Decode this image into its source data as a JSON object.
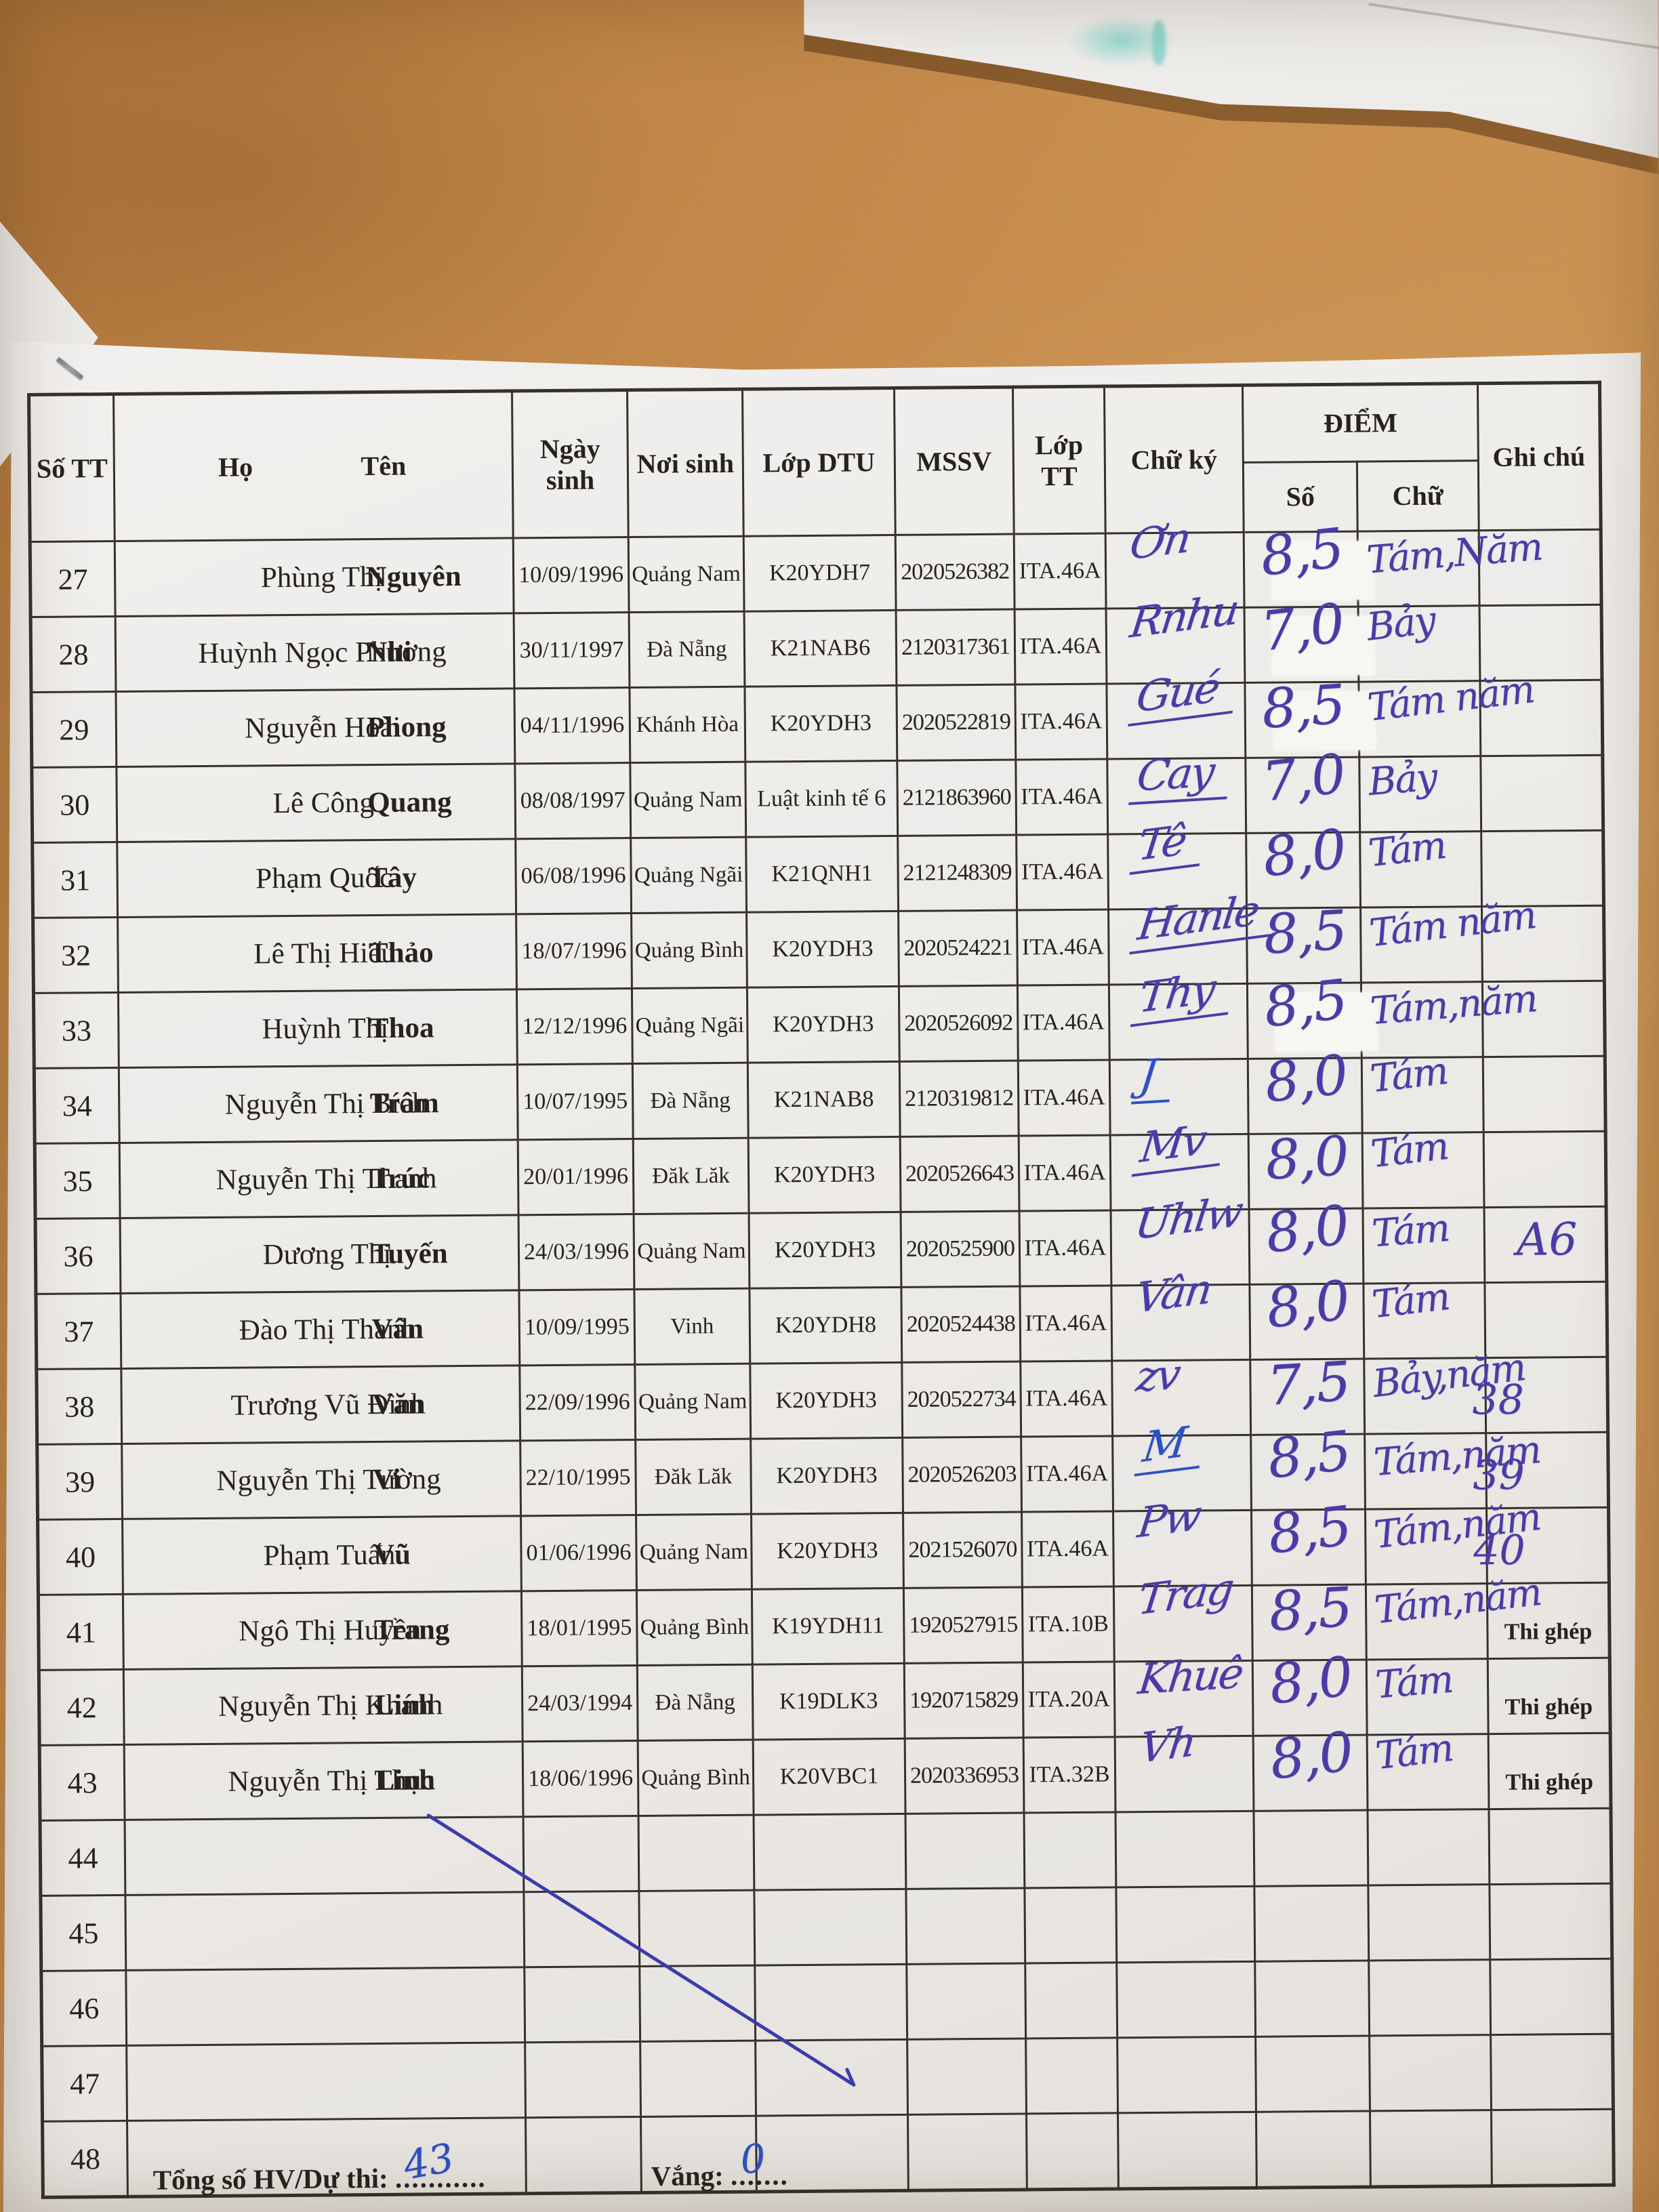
{
  "document": {
    "header": {
      "col_stt": "Số TT",
      "col_ho": "Họ",
      "col_ten": "Tên",
      "col_ngay_sinh": "Ngày sinh",
      "col_noi_sinh": "Nơi sinh",
      "col_lop_dtu": "Lớp DTU",
      "col_mssv": "MSSV",
      "col_lop_tt": "Lớp TT",
      "col_chu_ky": "Chữ ký",
      "col_diem": "ĐIỂM",
      "col_diem_so": "Số",
      "col_diem_chu": "Chữ",
      "col_ghi_chu": "Ghi chú"
    },
    "rows": [
      {
        "stt": "27",
        "ho": "Phùng Thị",
        "ten": "Nguyên",
        "ngay_sinh": "10/09/1996",
        "noi_sinh": "Quảng Nam",
        "lop_dtu": "K20YDH7",
        "mssv": "2020526382",
        "lop_tt": "ITA.46A",
        "chu_ky": "Ơn",
        "sig_ink": "purple",
        "sig_underline": false,
        "diem_so": "8,5",
        "diem_chu": "Tám,Năm",
        "margin_note": "",
        "ghi_chu": "",
        "ghi_chu_hw": "",
        "patch": true
      },
      {
        "stt": "28",
        "ho": "Huỳnh Ngọc Phương",
        "ten": "Nhi",
        "ngay_sinh": "30/11/1997",
        "noi_sinh": "Đà Nẵng",
        "lop_dtu": "K21NAB6",
        "mssv": "2120317361",
        "lop_tt": "ITA.46A",
        "chu_ky": "Rnhu",
        "sig_ink": "purple",
        "sig_underline": false,
        "diem_so": "7,0",
        "diem_chu": "Bảy",
        "margin_note": "",
        "ghi_chu": "",
        "ghi_chu_hw": "",
        "patch": true
      },
      {
        "stt": "29",
        "ho": "Nguyễn Hoài",
        "ten": "Phong",
        "ngay_sinh": "04/11/1996",
        "noi_sinh": "Khánh Hòa",
        "lop_dtu": "K20YDH3",
        "mssv": "2020522819",
        "lop_tt": "ITA.46A",
        "chu_ky": "Gué",
        "sig_ink": "purple",
        "sig_underline": true,
        "diem_so": "8,5",
        "diem_chu": "Tám năm",
        "margin_note": "",
        "ghi_chu": "",
        "ghi_chu_hw": "",
        "patch": true
      },
      {
        "stt": "30",
        "ho": "Lê Công",
        "ten": "Quang",
        "ngay_sinh": "08/08/1997",
        "noi_sinh": "Quảng Nam",
        "lop_dtu": "Luật kinh tế 6",
        "mssv": "2121863960",
        "lop_tt": "ITA.46A",
        "chu_ky": "Cay",
        "sig_ink": "purple",
        "sig_underline": true,
        "diem_so": "7,0",
        "diem_chu": "Bảy",
        "margin_note": "",
        "ghi_chu": "",
        "ghi_chu_hw": "",
        "patch": false
      },
      {
        "stt": "31",
        "ho": "Phạm Quốc",
        "ten": "Tây",
        "ngay_sinh": "06/08/1996",
        "noi_sinh": "Quảng Ngãi",
        "lop_dtu": "K21QNH1",
        "mssv": "2121248309",
        "lop_tt": "ITA.46A",
        "chu_ky": "Tê",
        "sig_ink": "purple",
        "sig_underline": true,
        "diem_so": "8,0",
        "diem_chu": "Tám",
        "margin_note": "",
        "ghi_chu": "",
        "ghi_chu_hw": "",
        "patch": false
      },
      {
        "stt": "32",
        "ho": "Lê Thị Hiếu",
        "ten": "Thảo",
        "ngay_sinh": "18/07/1996",
        "noi_sinh": "Quảng Bình",
        "lop_dtu": "K20YDH3",
        "mssv": "2020524221",
        "lop_tt": "ITA.46A",
        "chu_ky": "Hanle",
        "sig_ink": "purple",
        "sig_underline": true,
        "diem_so": "8,5",
        "diem_chu": "Tám năm",
        "margin_note": "",
        "ghi_chu": "",
        "ghi_chu_hw": "",
        "patch": false
      },
      {
        "stt": "33",
        "ho": "Huỳnh Thị",
        "ten": "Thoa",
        "ngay_sinh": "12/12/1996",
        "noi_sinh": "Quảng Ngãi",
        "lop_dtu": "K20YDH3",
        "mssv": "2020526092",
        "lop_tt": "ITA.46A",
        "chu_ky": "Thy",
        "sig_ink": "purple",
        "sig_underline": true,
        "diem_so": "8,5",
        "diem_chu": "Tám,năm",
        "margin_note": "",
        "ghi_chu": "",
        "ghi_chu_hw": "",
        "patch": true
      },
      {
        "stt": "34",
        "ho": "Nguyễn Thị Bích",
        "ten": "Trâm",
        "ngay_sinh": "10/07/1995",
        "noi_sinh": "Đà Nẵng",
        "lop_dtu": "K21NAB8",
        "mssv": "2120319812",
        "lop_tt": "ITA.46A",
        "chu_ky": "J",
        "sig_ink": "blue",
        "sig_underline": true,
        "diem_so": "8,0",
        "diem_chu": "Tám",
        "margin_note": "",
        "ghi_chu": "",
        "ghi_chu_hw": "",
        "patch": false
      },
      {
        "stt": "35",
        "ho": "Nguyễn Thị Thanh",
        "ten": "Trúc",
        "ngay_sinh": "20/01/1996",
        "noi_sinh": "Đăk Lăk",
        "lop_dtu": "K20YDH3",
        "mssv": "2020526643",
        "lop_tt": "ITA.46A",
        "chu_ky": "Mv",
        "sig_ink": "purple",
        "sig_underline": true,
        "diem_so": "8,0",
        "diem_chu": "Tám",
        "margin_note": "",
        "ghi_chu": "",
        "ghi_chu_hw": "",
        "patch": false
      },
      {
        "stt": "36",
        "ho": "Dương Thị",
        "ten": "Tuyến",
        "ngay_sinh": "24/03/1996",
        "noi_sinh": "Quảng Nam",
        "lop_dtu": "K20YDH3",
        "mssv": "2020525900",
        "lop_tt": "ITA.46A",
        "chu_ky": "Uhlw",
        "sig_ink": "purple",
        "sig_underline": false,
        "diem_so": "8,0",
        "diem_chu": "Tám",
        "margin_note": "",
        "ghi_chu": "",
        "ghi_chu_hw": "A6",
        "patch": false
      },
      {
        "stt": "37",
        "ho": "Đào Thị Thanh",
        "ten": "Vân",
        "ngay_sinh": "10/09/1995",
        "noi_sinh": "Vinh",
        "lop_dtu": "K20YDH8",
        "mssv": "2020524438",
        "lop_tt": "ITA.46A",
        "chu_ky": "Vân",
        "sig_ink": "purple",
        "sig_underline": false,
        "diem_so": "8,0",
        "diem_chu": "Tám",
        "margin_note": "",
        "ghi_chu": "",
        "ghi_chu_hw": "",
        "patch": false
      },
      {
        "stt": "38",
        "ho": "Trương Vũ Đình",
        "ten": "Văn",
        "ngay_sinh": "22/09/1996",
        "noi_sinh": "Quảng Nam",
        "lop_dtu": "K20YDH3",
        "mssv": "2020522734",
        "lop_tt": "ITA.46A",
        "chu_ky": "zv",
        "sig_ink": "purple",
        "sig_underline": false,
        "diem_so": "7,5",
        "diem_chu": "Bảy,năm",
        "margin_note": "38",
        "ghi_chu": "",
        "ghi_chu_hw": "",
        "patch": false
      },
      {
        "stt": "39",
        "ho": "Nguyễn Thị Tường",
        "ten": "Vi",
        "ngay_sinh": "22/10/1995",
        "noi_sinh": "Đăk Lăk",
        "lop_dtu": "K20YDH3",
        "mssv": "2020526203",
        "lop_tt": "ITA.46A",
        "chu_ky": "M",
        "sig_ink": "blue",
        "sig_underline": true,
        "diem_so": "8,5",
        "diem_chu": "Tám,năm",
        "margin_note": "39",
        "ghi_chu": "",
        "ghi_chu_hw": "",
        "patch": false
      },
      {
        "stt": "40",
        "ho": "Phạm Tuấn",
        "ten": "Vũ",
        "ngay_sinh": "01/06/1996",
        "noi_sinh": "Quảng Nam",
        "lop_dtu": "K20YDH3",
        "mssv": "2021526070",
        "lop_tt": "ITA.46A",
        "chu_ky": "Pw",
        "sig_ink": "purple",
        "sig_underline": false,
        "diem_so": "8,5",
        "diem_chu": "Tám,năm",
        "margin_note": "40",
        "ghi_chu": "",
        "ghi_chu_hw": "",
        "patch": false
      },
      {
        "stt": "41",
        "ho": "Ngô Thị Huyền",
        "ten": "Trang",
        "ngay_sinh": "18/01/1995",
        "noi_sinh": "Quảng Bình",
        "lop_dtu": "K19YDH11",
        "mssv": "1920527915",
        "lop_tt": "ITA.10B",
        "chu_ky": "Trag",
        "sig_ink": "purple",
        "sig_underline": false,
        "diem_so": "8,5",
        "diem_chu": "Tám,năm",
        "margin_note": "",
        "ghi_chu": "Thi ghép",
        "ghi_chu_hw": "",
        "patch": false
      },
      {
        "stt": "42",
        "ho": "Nguyễn Thị Khánh",
        "ten": "Linh",
        "ngay_sinh": "24/03/1994",
        "noi_sinh": "Đà Nẵng",
        "lop_dtu": "K19DLK3",
        "mssv": "1920715829",
        "lop_tt": "ITA.20A",
        "chu_ky": "Khuê",
        "sig_ink": "purple",
        "sig_underline": false,
        "diem_so": "8,0",
        "diem_chu": "Tám",
        "margin_note": "",
        "ghi_chu": "Thi ghép",
        "ghi_chu_hw": "",
        "patch": false
      },
      {
        "stt": "43",
        "ho": "Nguyễn Thị Thục",
        "ten": "Linh",
        "ngay_sinh": "18/06/1996",
        "noi_sinh": "Quảng Bình",
        "lop_dtu": "K20VBC1",
        "mssv": "2020336953",
        "lop_tt": "ITA.32B",
        "chu_ky": "Vh",
        "sig_ink": "purple",
        "sig_underline": false,
        "diem_so": "8,0",
        "diem_chu": "Tám",
        "margin_note": "",
        "ghi_chu": "Thi ghép",
        "ghi_chu_hw": "",
        "patch": false
      }
    ],
    "empty_rows": [
      "44",
      "45",
      "46",
      "47",
      "48"
    ],
    "footer": {
      "tong_label": "Tổng số HV/Dự thi:",
      "tong_dots": "...........",
      "tong_value": "43",
      "vang_label": "Vắng:",
      "vang_dots": ".......",
      "vang_value": "0"
    },
    "colors": {
      "ink_purple": "#4c3ba6",
      "ink_blue": "#2d52c4",
      "paper": "#efedeb",
      "desk": "#c88f4f",
      "table_line": "#35312c"
    }
  }
}
